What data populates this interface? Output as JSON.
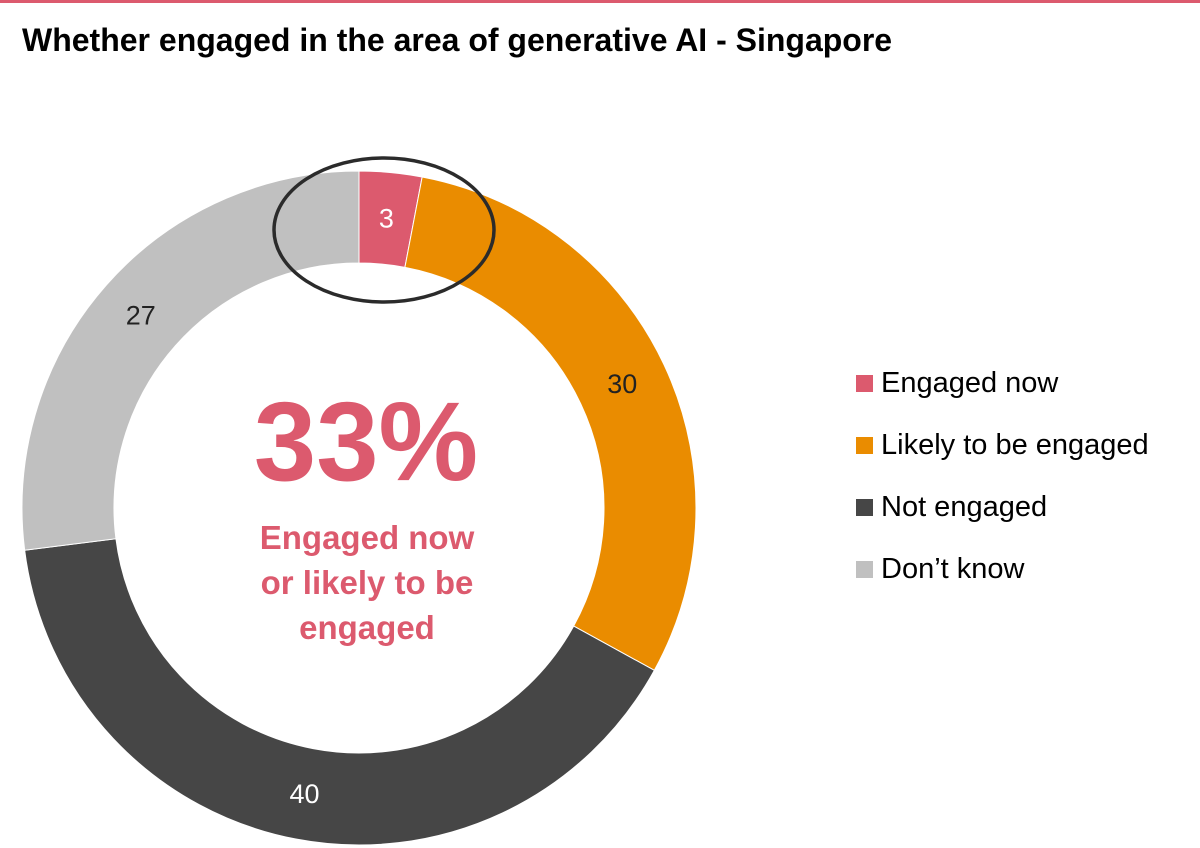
{
  "title": "Whether engaged in the area of generative AI - Singapore",
  "colors": {
    "accent": "#dc5a6e",
    "engaged_now": "#dc5a6e",
    "likely": "#ea8c00",
    "not_engaged": "#464646",
    "dont_know": "#c0c0c0",
    "highlight_ring": "#2b2b2b"
  },
  "center": {
    "value": "33%",
    "caption_lines": [
      "Engaged now",
      "or likely to be",
      "engaged"
    ]
  },
  "chart_data": {
    "type": "pie",
    "variant": "donut",
    "title": "Whether engaged in the area of generative AI - Singapore",
    "categories": [
      "Engaged now",
      "Likely to be engaged",
      "Not engaged",
      "Don’t know"
    ],
    "values": [
      3,
      30,
      40,
      27
    ],
    "value_labels": [
      "3",
      "30",
      "40",
      "27"
    ],
    "colors": [
      "#dc5a6e",
      "#ea8c00",
      "#464646",
      "#c0c0c0"
    ],
    "label_colors": [
      "#ffffff",
      "#222222",
      "#ffffff",
      "#222222"
    ],
    "start": "12 o'clock, clockwise",
    "highlighted_category": "Engaged now",
    "legend_position": "right"
  }
}
